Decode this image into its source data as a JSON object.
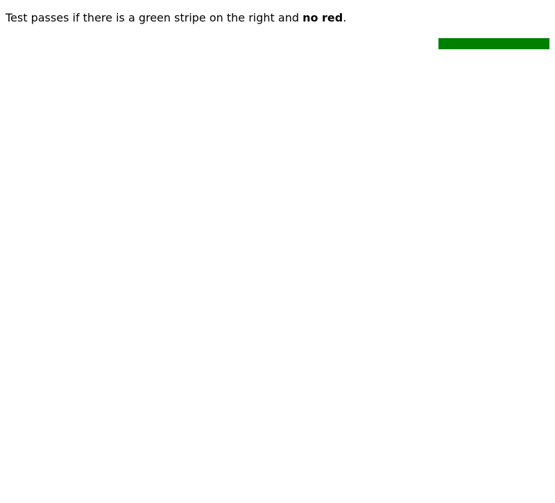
{
  "instruction": {
    "prefix": "Test passes if there is a green stripe on the right and ",
    "emphasis": "no red",
    "suffix": "."
  },
  "stripe": {
    "color": "#008000"
  }
}
